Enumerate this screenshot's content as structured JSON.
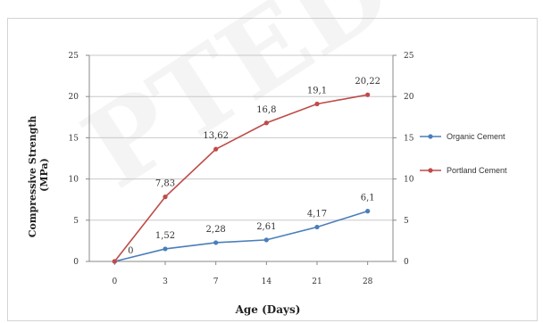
{
  "chart_data": {
    "type": "line",
    "xlabel": "Age (Days)",
    "ylabel": "Compressive Strength (MPa)",
    "ylabel_lines": [
      "Compressive Strength",
      "(MPa)"
    ],
    "categories": [
      "0",
      "3",
      "7",
      "14",
      "21",
      "28"
    ],
    "ylim": [
      0,
      25
    ],
    "yticks": [
      "0",
      "5",
      "10",
      "15",
      "20",
      "25"
    ],
    "grid": true,
    "legend_position": "right",
    "series": [
      {
        "name": "Organic Cement",
        "color": "#4a7ebb",
        "values": [
          0,
          1.52,
          2.28,
          2.61,
          4.17,
          6.1
        ],
        "labels": [
          "",
          "1,52",
          "2,28",
          "2,61",
          "4,17",
          "6,1"
        ]
      },
      {
        "name": "Portland Cement",
        "color": "#be4b48",
        "values": [
          0,
          7.83,
          13.62,
          16.8,
          19.1,
          20.22
        ],
        "labels": [
          "0",
          "7,83",
          "13,62",
          "16,8",
          "19,1",
          "20,22"
        ]
      }
    ]
  }
}
